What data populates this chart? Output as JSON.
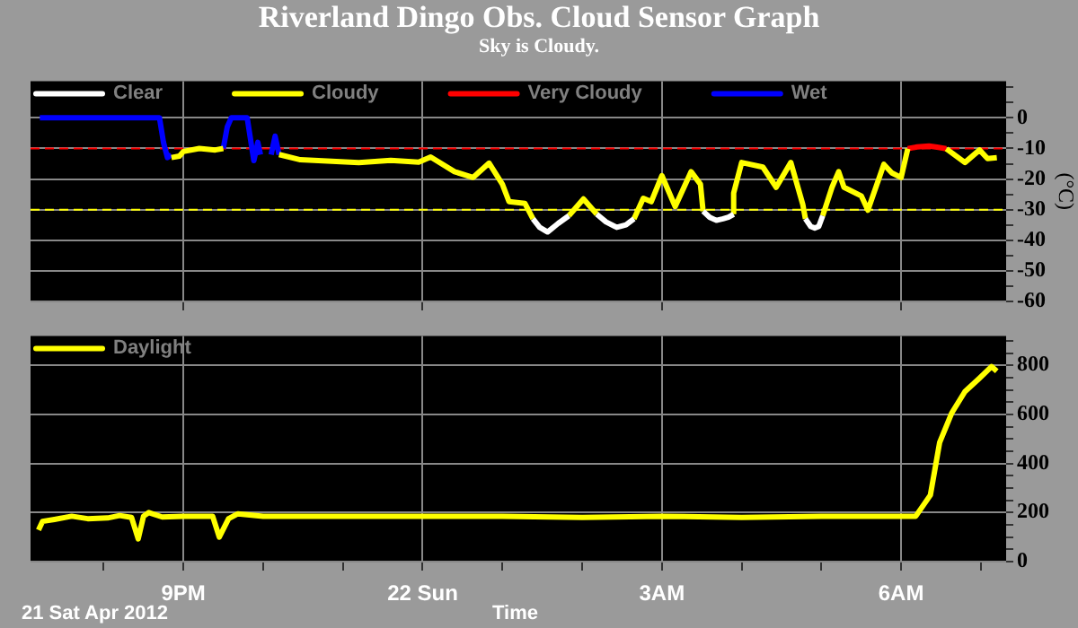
{
  "chart_data": [
    {
      "type": "line",
      "title": "Riverland Dingo Obs. Cloud Sensor Graph",
      "subtitle": "Sky is Cloudy.",
      "ylabel": "(°C)",
      "legend": "top left",
      "grid": true,
      "tick_labels": "y",
      "xlim": [
        "2012-04-21T19:05",
        "2012-04-22T07:19"
      ],
      "xticks": [
        {
          "value": "2012-04-21T21:00",
          "label": null
        },
        {
          "value": "2012-04-22T00:00",
          "label": null
        },
        {
          "value": "2012-04-22T03:00",
          "label": null
        },
        {
          "value": "2012-04-22T06:00",
          "label": null
        }
      ],
      "ylim": [
        -60,
        12
      ],
      "yticks": [
        -60,
        {
          "value": -55,
          "label": null
        },
        -50,
        {
          "value": -45,
          "label": null
        },
        -40,
        {
          "value": -35,
          "label": null
        },
        -30,
        {
          "value": -25,
          "label": null
        },
        -20,
        {
          "value": -15,
          "label": null
        },
        -10,
        {
          "value": -5,
          "label": null
        },
        0,
        {
          "value": 5,
          "label": null
        },
        {
          "value": 10,
          "label": null
        }
      ],
      "ref_lines": [
        {
          "axis": "y",
          "value": -10,
          "label": null,
          "color": "#ff0000",
          "line_style": "dashed"
        },
        {
          "axis": "y",
          "value": -30,
          "label": null,
          "color": "#ffff00",
          "line_style": "dashed"
        }
      ],
      "series": [
        {
          "name": "Clear",
          "color": "#ffffff",
          "x": [
            "2012-04-22T01:23",
            "2012-04-22T01:28",
            "2012-04-22T01:34",
            "2012-04-22T01:42",
            "2012-04-22T01:50",
            "2012-04-22T01:54",
            "2012-04-22T02:11",
            "2012-04-22T02:18",
            "2012-04-22T02:26",
            "2012-04-22T02:33",
            "2012-04-22T02:39",
            "2012-04-22T02:42",
            "2012-04-22T03:31",
            "2012-04-22T03:36",
            "2012-04-22T03:41",
            "2012-04-22T03:46",
            "2012-04-22T03:50",
            "2012-04-22T03:54",
            "2012-04-22T03:55",
            "2012-04-22T04:48",
            "2012-04-22T04:52",
            "2012-04-22T04:55",
            "2012-04-22T04:58",
            "2012-04-22T05:01"
          ],
          "values": [
            -33,
            -35.8,
            -37.3,
            -34.5,
            -32,
            null,
            -31.5,
            -34,
            -35.8,
            -35,
            -33,
            null,
            -30.5,
            -32.5,
            -33.5,
            -33,
            -32.5,
            -31.5,
            null,
            -33,
            -35.5,
            -36,
            -35.5,
            -32
          ]
        },
        {
          "name": "Cloudy",
          "color": "#ffff00",
          "x": [
            "2012-04-21T20:51",
            "2012-04-21T20:57",
            "2012-04-21T21:00",
            "2012-04-21T21:12",
            "2012-04-21T21:24",
            "2012-04-21T21:30",
            "2012-04-21T21:31",
            "2012-04-21T22:12",
            "2012-04-21T22:28",
            "2012-04-21T23:12",
            "2012-04-21T23:36",
            "2012-04-21T23:57",
            "2012-04-22T00:06",
            "2012-04-22T00:24",
            "2012-04-22T00:38",
            "2012-04-22T00:50",
            "2012-04-22T01:00",
            "2012-04-22T01:05",
            "2012-04-22T01:17",
            "2012-04-22T01:23",
            "2012-04-22T01:24",
            "2012-04-22T01:50",
            "2012-04-22T02:01",
            "2012-04-22T02:11",
            "2012-04-22T02:12",
            "2012-04-22T02:39",
            "2012-04-22T02:46",
            "2012-04-22T02:52",
            "2012-04-22T03:00",
            "2012-04-22T03:10",
            "2012-04-22T03:22",
            "2012-04-22T03:29",
            "2012-04-22T03:31",
            "2012-04-22T03:45",
            "2012-04-22T03:54",
            "2012-04-22T03:54",
            "2012-04-22T04:00",
            "2012-04-22T04:16",
            "2012-04-22T04:26",
            "2012-04-22T04:37",
            "2012-04-22T04:46",
            "2012-04-22T04:48",
            "2012-04-22T04:54",
            "2012-04-22T05:01",
            "2012-04-22T05:04",
            "2012-04-22T05:08",
            "2012-04-22T05:13",
            "2012-04-22T05:17",
            "2012-04-22T05:30",
            "2012-04-22T05:35",
            "2012-04-22T05:47",
            "2012-04-22T05:53",
            "2012-04-22T06:00",
            "2012-04-22T06:05",
            "2012-04-22T06:18",
            "2012-04-22T06:34",
            "2012-04-22T06:48",
            "2012-04-22T06:59",
            "2012-04-22T07:05",
            "2012-04-22T07:12"
          ],
          "values": [
            -13,
            -12.5,
            -11,
            -10,
            -10.5,
            -10,
            null,
            -12,
            -13.7,
            -14.6,
            -13.9,
            -14.5,
            -12.8,
            -17.6,
            -19.5,
            -14.8,
            -21.7,
            -27.4,
            -28,
            -33,
            null,
            -32,
            -26.5,
            -31.5,
            null,
            -33,
            -26.3,
            -27.4,
            -18.9,
            -29,
            -17.6,
            -21.7,
            -30.5,
            null,
            -31.5,
            -24.6,
            -14.6,
            -16.1,
            -22.7,
            -14.6,
            -28.3,
            -33,
            null,
            -32,
            -28,
            -22.7,
            -17.6,
            -22.7,
            -25.5,
            -30.2,
            -15.2,
            -18,
            -19.5,
            -10.1,
            null,
            -10.1,
            -14.6,
            -10.5,
            -13.3,
            -13
          ]
        },
        {
          "name": "Very Cloudy",
          "color": "#ff0000",
          "x": [
            "2012-04-22T06:05",
            "2012-04-22T06:12",
            "2012-04-22T06:21",
            "2012-04-22T06:27",
            "2012-04-22T06:34"
          ],
          "values": [
            -10.1,
            -9.5,
            -9.2,
            -9.6,
            -10.1
          ]
        },
        {
          "name": "Wet",
          "color": "#0000ff",
          "x": [
            "2012-04-21T19:12",
            "2012-04-21T20:42",
            "2012-04-21T20:45",
            "2012-04-21T20:48",
            "2012-04-21T20:51",
            "2012-04-21T20:52",
            "2012-04-21T21:30",
            "2012-04-21T21:33",
            "2012-04-21T21:36",
            "2012-04-21T21:48",
            "2012-04-21T21:53",
            "2012-04-21T21:56",
            "2012-04-21T21:58",
            "2012-04-21T21:59",
            "2012-04-21T22:06",
            "2012-04-21T22:09",
            "2012-04-21T22:12"
          ],
          "values": [
            0,
            0,
            -8,
            -13,
            -12,
            null,
            -10,
            -3,
            0,
            0,
            -14,
            -8,
            -12,
            null,
            -12,
            -6,
            -12
          ]
        }
      ]
    },
    {
      "type": "line",
      "xlabel": "Time",
      "annotations": [
        "21 Sat Apr 2012"
      ],
      "legend": "top left",
      "grid": true,
      "xlim": [
        "2012-04-21T19:05",
        "2012-04-22T07:19"
      ],
      "xticks": [
        {
          "value": "2012-04-21T20:00",
          "label": null
        },
        {
          "value": "2012-04-21T21:00",
          "label": "9PM"
        },
        {
          "value": "2012-04-21T22:00",
          "label": null
        },
        {
          "value": "2012-04-21T23:00",
          "label": null
        },
        {
          "value": "2012-04-22T00:00",
          "label": "22 Sun"
        },
        {
          "value": "2012-04-22T01:00",
          "label": null
        },
        {
          "value": "2012-04-22T02:00",
          "label": null
        },
        {
          "value": "2012-04-22T03:00",
          "label": "3AM"
        },
        {
          "value": "2012-04-22T04:00",
          "label": null
        },
        {
          "value": "2012-04-22T05:00",
          "label": null
        },
        {
          "value": "2012-04-22T06:00",
          "label": "6AM"
        },
        {
          "value": "2012-04-22T07:00",
          "label": null
        }
      ],
      "ylim": [
        0,
        920
      ],
      "yticks": [
        0,
        {
          "value": 50,
          "label": null
        },
        {
          "value": 100,
          "label": null
        },
        {
          "value": 150,
          "label": null
        },
        200,
        {
          "value": 250,
          "label": null
        },
        {
          "value": 300,
          "label": null
        },
        {
          "value": 350,
          "label": null
        },
        400,
        {
          "value": 450,
          "label": null
        },
        {
          "value": 500,
          "label": null
        },
        {
          "value": 550,
          "label": null
        },
        600,
        {
          "value": 650,
          "label": null
        },
        {
          "value": 700,
          "label": null
        },
        {
          "value": 750,
          "label": null
        },
        800,
        {
          "value": 850,
          "label": null
        },
        {
          "value": 900,
          "label": null
        }
      ],
      "series": [
        {
          "name": "Daylight",
          "color": "#ffff00",
          "x": [
            "2012-04-21T19:11",
            "2012-04-21T19:14",
            "2012-04-21T19:23",
            "2012-04-21T19:36",
            "2012-04-21T19:48",
            "2012-04-21T20:03",
            "2012-04-21T20:12",
            "2012-04-21T20:21",
            "2012-04-21T20:26",
            "2012-04-21T20:30",
            "2012-04-21T20:34",
            "2012-04-21T20:44",
            "2012-04-21T21:00",
            "2012-04-21T21:22",
            "2012-04-21T21:27",
            "2012-04-21T21:34",
            "2012-04-21T21:41",
            "2012-04-21T22:00",
            "2012-04-21T23:00",
            "2012-04-22T00:00",
            "2012-04-22T01:00",
            "2012-04-22T02:00",
            "2012-04-22T03:00",
            "2012-04-22T04:00",
            "2012-04-22T05:00",
            "2012-04-22T06:00",
            "2012-04-22T06:11",
            "2012-04-22T06:22",
            "2012-04-22T06:29",
            "2012-04-22T06:38",
            "2012-04-22T06:48",
            "2012-04-22T06:59",
            "2012-04-22T07:08",
            "2012-04-22T07:12"
          ],
          "values": [
            129,
            164,
            172,
            185,
            175,
            178,
            188,
            180,
            93,
            185,
            200,
            182,
            185,
            185,
            100,
            175,
            195,
            185,
            185,
            185,
            185,
            180,
            185,
            180,
            185,
            185,
            185,
            271,
            486,
            605,
            693,
            748,
            795,
            776
          ]
        }
      ]
    }
  ]
}
